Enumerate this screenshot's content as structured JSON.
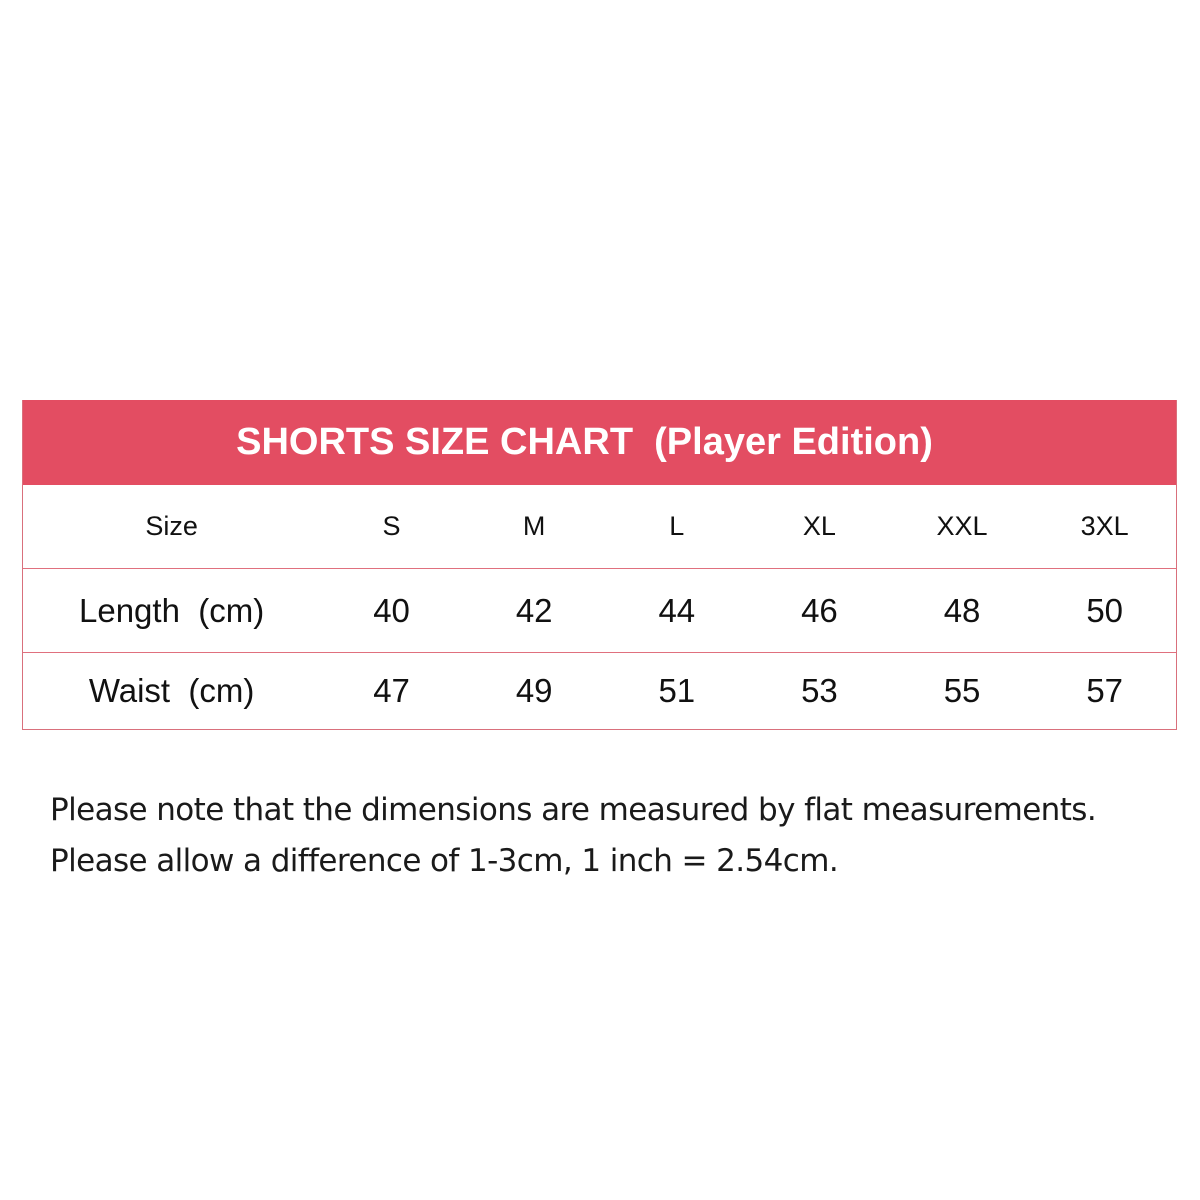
{
  "title": "SHORTS SIZE CHART  (Player Edition)",
  "header_color": "#e34d62",
  "table": {
    "header": {
      "label": "Size",
      "sizes": [
        "S",
        "M",
        "L",
        "XL",
        "XXL",
        "3XL"
      ]
    },
    "rows": [
      {
        "label": "Length  (cm)",
        "values": [
          "40",
          "42",
          "44",
          "46",
          "48",
          "50"
        ]
      },
      {
        "label": "Waist  (cm)",
        "values": [
          "47",
          "49",
          "51",
          "53",
          "55",
          "57"
        ]
      }
    ]
  },
  "notes": [
    "Please note that the dimensions are measured by flat measurements.",
    "Please allow a difference of 1-3cm, 1 inch = 2.54cm."
  ]
}
